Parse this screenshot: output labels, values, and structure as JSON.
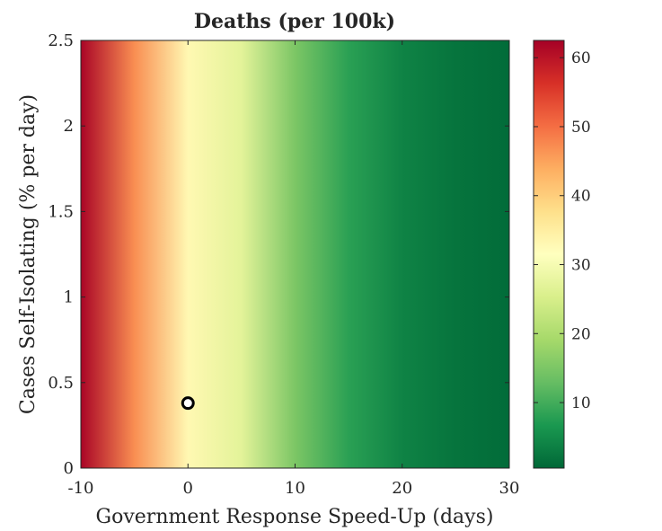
{
  "chart_data": {
    "type": "heatmap",
    "title": "Deaths (per 100k)",
    "xlabel": "Government Response Speed-Up (days)",
    "ylabel": "Cases Self-Isolating (% per day)",
    "xlim": [
      -10,
      30
    ],
    "ylim": [
      0,
      2.5
    ],
    "x_ticks": [
      "-10",
      "0",
      "10",
      "20",
      "30"
    ],
    "y_ticks": [
      "0",
      "0.5",
      "1",
      "1.5",
      "2",
      "2.5"
    ],
    "colorbar": {
      "colormap": "RdYlGn (reversed: high = red, low = green)",
      "range": [
        0.5,
        62.5
      ],
      "ticks": [
        "10",
        "20",
        "30",
        "40",
        "50",
        "60"
      ]
    },
    "value_profile": {
      "x": [
        -10,
        -5,
        0,
        5,
        10,
        15,
        20,
        25,
        30
      ],
      "value": [
        62,
        47,
        33,
        27,
        15,
        8,
        4,
        2,
        1
      ]
    },
    "marker": {
      "x": 0,
      "y": 0.38,
      "style": "black ring, white fill"
    },
    "colors": {
      "high": "#a50026",
      "mid": "#ffffbf",
      "low": "#006837",
      "marker_stroke": "#000000"
    }
  }
}
